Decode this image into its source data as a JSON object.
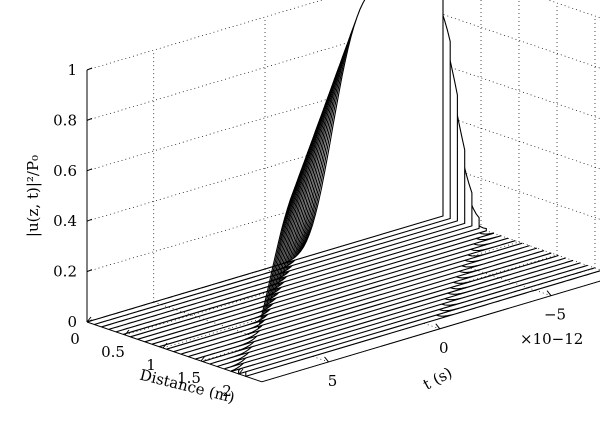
{
  "chart_data": {
    "type": "line",
    "title": "",
    "xlabel": "Distance (m)",
    "ylabel": "t (s)",
    "zlabel": "|u(z, t)|²/P₀",
    "x_ticks": [
      "0",
      "0.5",
      "1",
      "1.5",
      "2"
    ],
    "x_tick_values": [
      0,
      0.5,
      1,
      1.5,
      2
    ],
    "y_ticks": [
      "5",
      "0",
      "−5"
    ],
    "y_tick_values": [
      5,
      0,
      -5
    ],
    "y_exponent": "×10−12",
    "z_ticks": [
      "0",
      "0.2",
      "0.4",
      "0.6",
      "0.8",
      "1"
    ],
    "z_tick_values": [
      0,
      0.2,
      0.4,
      0.6,
      0.8,
      1
    ],
    "xlim": [
      0,
      2.3
    ],
    "ylim": [
      -8,
      8
    ],
    "zlim": [
      0,
      1
    ],
    "grid": true,
    "t_width_ps": 3.2,
    "series": [
      {
        "distance_m": 0.0,
        "peak": 1.0,
        "center_ps": -6.0
      },
      {
        "distance_m": 0.095,
        "peak": 0.99,
        "center_ps": -5.55
      },
      {
        "distance_m": 0.19,
        "peak": 0.98,
        "center_ps": -5.1
      },
      {
        "distance_m": 0.285,
        "peak": 0.97,
        "center_ps": -4.65
      },
      {
        "distance_m": 0.38,
        "peak": 0.96,
        "center_ps": -4.2
      },
      {
        "distance_m": 0.475,
        "peak": 0.95,
        "center_ps": -3.75
      },
      {
        "distance_m": 0.57,
        "peak": 0.94,
        "center_ps": -3.3
      },
      {
        "distance_m": 0.665,
        "peak": 0.93,
        "center_ps": -2.85
      },
      {
        "distance_m": 0.76,
        "peak": 0.92,
        "center_ps": -2.4
      },
      {
        "distance_m": 0.855,
        "peak": 0.91,
        "center_ps": -1.95
      },
      {
        "distance_m": 0.95,
        "peak": 0.9,
        "center_ps": -1.5
      },
      {
        "distance_m": 1.045,
        "peak": 0.89,
        "center_ps": -1.05
      },
      {
        "distance_m": 1.14,
        "peak": 0.88,
        "center_ps": -0.6
      },
      {
        "distance_m": 1.235,
        "peak": 0.87,
        "center_ps": -0.15
      },
      {
        "distance_m": 1.33,
        "peak": 0.86,
        "center_ps": 0.3
      },
      {
        "distance_m": 1.425,
        "peak": 0.85,
        "center_ps": 0.75
      },
      {
        "distance_m": 1.52,
        "peak": 0.84,
        "center_ps": 1.2
      },
      {
        "distance_m": 1.615,
        "peak": 0.83,
        "center_ps": 1.65
      },
      {
        "distance_m": 1.71,
        "peak": 0.82,
        "center_ps": 2.1
      },
      {
        "distance_m": 1.805,
        "peak": 0.81,
        "center_ps": 2.55
      },
      {
        "distance_m": 1.9,
        "peak": 0.8,
        "center_ps": 3.0
      },
      {
        "distance_m": 1.995,
        "peak": 0.79,
        "center_ps": 3.45
      },
      {
        "distance_m": 2.09,
        "peak": 0.78,
        "center_ps": 3.9
      }
    ]
  }
}
